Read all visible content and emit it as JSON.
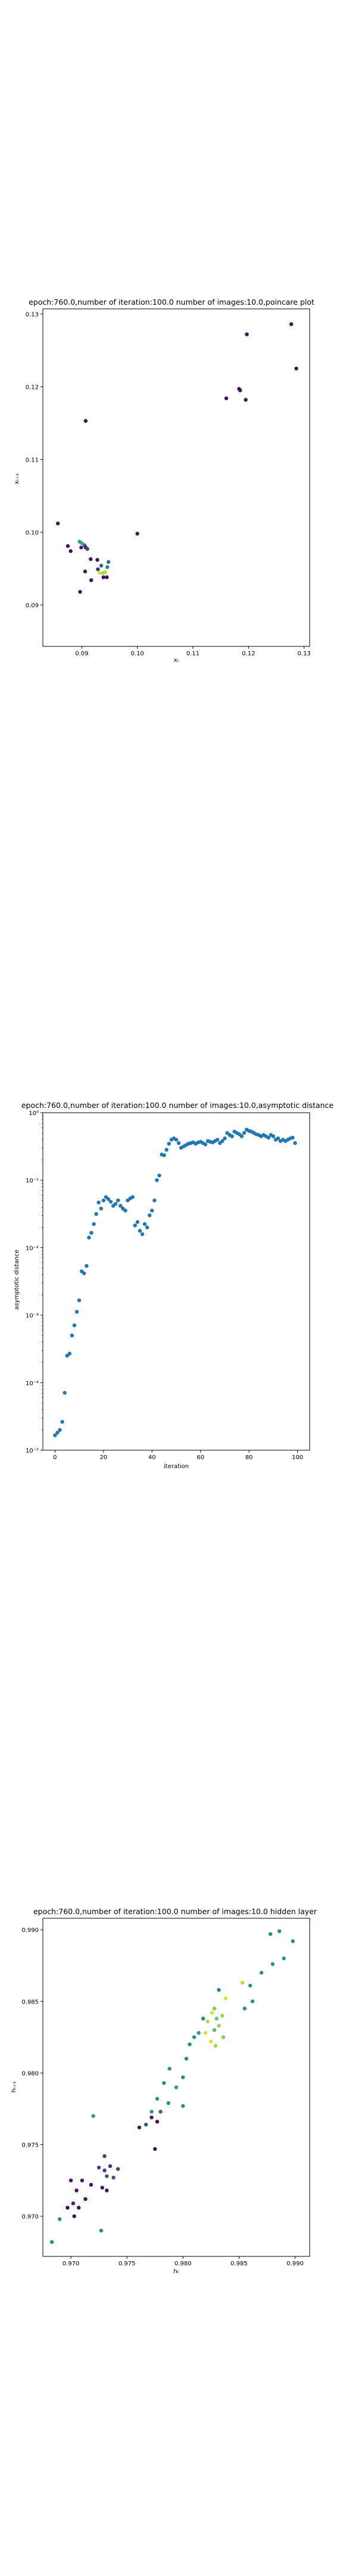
{
  "chart_data": [
    {
      "type": "scatter",
      "title": "epoch:760.0,number of iteration:100.0  number of images:10.0,poincare plot",
      "xlabel": "xₜ",
      "ylabel": "xₜ₊₁",
      "xlim": [
        0.083,
        0.131
      ],
      "ylim": [
        0.0843,
        0.1307
      ],
      "xticks": [
        0.09,
        0.1,
        0.11,
        0.12,
        0.13
      ],
      "xtick_labels": [
        "0.09",
        "0.10",
        "0.11",
        "0.12",
        "0.13"
      ],
      "yticks": [
        0.09,
        0.1,
        0.11,
        0.12,
        0.13
      ],
      "ytick_labels": [
        "0.09",
        "0.10",
        "0.11",
        "0.12",
        "0.13"
      ],
      "colormap": "viridis",
      "grid": false,
      "points": [
        {
          "x": 0.1277,
          "y": 0.1286,
          "c": 0.05
        },
        {
          "x": 0.1286,
          "y": 0.1225,
          "c": 0.05
        },
        {
          "x": 0.1197,
          "y": 0.1272,
          "c": 0.05
        },
        {
          "x": 0.1183,
          "y": 0.1197,
          "c": 0.05
        },
        {
          "x": 0.1185,
          "y": 0.1195,
          "c": 0.05
        },
        {
          "x": 0.116,
          "y": 0.1184,
          "c": 0.05
        },
        {
          "x": 0.1195,
          "y": 0.1182,
          "c": 0.05
        },
        {
          "x": 0.0907,
          "y": 0.1153,
          "c": 0.05
        },
        {
          "x": 0.0857,
          "y": 0.1012,
          "c": 0.05
        },
        {
          "x": 0.1,
          "y": 0.0998,
          "c": 0.05
        },
        {
          "x": 0.0875,
          "y": 0.0981,
          "c": 0.05
        },
        {
          "x": 0.088,
          "y": 0.0974,
          "c": 0.05
        },
        {
          "x": 0.0896,
          "y": 0.0987,
          "c": 0.55
        },
        {
          "x": 0.09,
          "y": 0.0985,
          "c": 0.6
        },
        {
          "x": 0.0905,
          "y": 0.0982,
          "c": 0.35
        },
        {
          "x": 0.0899,
          "y": 0.0979,
          "c": 0.1
        },
        {
          "x": 0.0907,
          "y": 0.0979,
          "c": 0.1
        },
        {
          "x": 0.091,
          "y": 0.0977,
          "c": 0.2
        },
        {
          "x": 0.0916,
          "y": 0.0963,
          "c": 0.05
        },
        {
          "x": 0.0928,
          "y": 0.0962,
          "c": 0.05
        },
        {
          "x": 0.0935,
          "y": 0.0954,
          "c": 0.3
        },
        {
          "x": 0.0929,
          "y": 0.0949,
          "c": 0.15
        },
        {
          "x": 0.0932,
          "y": 0.0944,
          "c": 0.95
        },
        {
          "x": 0.0938,
          "y": 0.0944,
          "c": 0.85
        },
        {
          "x": 0.0942,
          "y": 0.0945,
          "c": 0.9
        },
        {
          "x": 0.0946,
          "y": 0.0952,
          "c": 0.45
        },
        {
          "x": 0.0948,
          "y": 0.0959,
          "c": 0.35
        },
        {
          "x": 0.0939,
          "y": 0.0938,
          "c": 0.05
        },
        {
          "x": 0.0945,
          "y": 0.0938,
          "c": 0.05
        },
        {
          "x": 0.0906,
          "y": 0.0946,
          "c": 0.05
        },
        {
          "x": 0.0917,
          "y": 0.0934,
          "c": 0.05
        },
        {
          "x": 0.0897,
          "y": 0.0918,
          "c": 0.05
        }
      ]
    },
    {
      "type": "scatter",
      "title": "epoch:760.0,number of iteration:100.0  number of images:10.0,asymptotic distance",
      "xlabel": "iteration",
      "ylabel": "asymptotic distance",
      "xlim": [
        -5,
        105
      ],
      "ylim_log10": [
        -5,
        0
      ],
      "scale_y": "log",
      "xticks": [
        0,
        20,
        40,
        60,
        80,
        100
      ],
      "xtick_labels": [
        "0",
        "20",
        "40",
        "60",
        "80",
        "100"
      ],
      "ytick_labels": [
        "10⁻⁵",
        "10⁻⁴",
        "10⁻³",
        "10⁻²",
        "10⁻¹",
        "10⁰"
      ],
      "grid": false,
      "color": "#1f77b4",
      "x": [
        0,
        1,
        2,
        3,
        4,
        5,
        6,
        7,
        8,
        9,
        10,
        11,
        12,
        13,
        14,
        15,
        16,
        17,
        18,
        19,
        20,
        21,
        22,
        23,
        24,
        25,
        26,
        27,
        28,
        29,
        30,
        31,
        32,
        33,
        34,
        35,
        36,
        37,
        38,
        39,
        40,
        41,
        42,
        43,
        44,
        45,
        46,
        47,
        48,
        49,
        50,
        51,
        52,
        53,
        54,
        55,
        56,
        57,
        58,
        59,
        60,
        61,
        62,
        63,
        64,
        65,
        66,
        67,
        68,
        69,
        70,
        71,
        72,
        73,
        74,
        75,
        76,
        77,
        78,
        79,
        80,
        81,
        82,
        83,
        84,
        85,
        86,
        87,
        88,
        89,
        90,
        91,
        92,
        93,
        94,
        95,
        96,
        97,
        98,
        99
      ],
      "log10_y": [
        -4.78,
        -4.74,
        -4.7,
        -4.58,
        -4.15,
        -3.6,
        -3.57,
        -3.3,
        -3.15,
        -2.95,
        -2.78,
        -2.35,
        -2.38,
        -2.27,
        -1.85,
        -1.78,
        -1.65,
        -1.5,
        -1.33,
        -1.42,
        -1.3,
        -1.25,
        -1.28,
        -1.32,
        -1.38,
        -1.35,
        -1.3,
        -1.38,
        -1.42,
        -1.45,
        -1.3,
        -1.27,
        -1.25,
        -1.67,
        -1.62,
        -1.75,
        -1.8,
        -1.65,
        -1.7,
        -1.52,
        -1.45,
        -1.3,
        -1.0,
        -0.93,
        -0.62,
        -0.63,
        -0.55,
        -0.46,
        -0.4,
        -0.38,
        -0.4,
        -0.45,
        -0.52,
        -0.5,
        -0.48,
        -0.46,
        -0.45,
        -0.44,
        -0.46,
        -0.44,
        -0.43,
        -0.45,
        -0.47,
        -0.42,
        -0.43,
        -0.44,
        -0.42,
        -0.4,
        -0.45,
        -0.42,
        -0.38,
        -0.3,
        -0.33,
        -0.35,
        -0.28,
        -0.3,
        -0.32,
        -0.35,
        -0.3,
        -0.25,
        -0.27,
        -0.28,
        -0.3,
        -0.32,
        -0.33,
        -0.35,
        -0.33,
        -0.35,
        -0.37,
        -0.33,
        -0.35,
        -0.4,
        -0.38,
        -0.42,
        -0.4,
        -0.42,
        -0.4,
        -0.38,
        -0.37,
        -0.45
      ]
    },
    {
      "type": "scatter",
      "title": "epoch:760.0,number of iteration:100.0  number of images:10.0 hidden layer",
      "xlabel": "hₜ",
      "ylabel": "hₜ₊₁",
      "xlim": [
        0.9675,
        0.9913
      ],
      "ylim": [
        0.9672,
        0.9908
      ],
      "xticks": [
        0.97,
        0.975,
        0.98,
        0.985,
        0.99
      ],
      "xtick_labels": [
        "0.970",
        "0.975",
        "0.980",
        "0.985",
        "0.990"
      ],
      "yticks": [
        0.97,
        0.975,
        0.98,
        0.985,
        0.99
      ],
      "ytick_labels": [
        "0.970",
        "0.975",
        "0.980",
        "0.985",
        "0.990"
      ],
      "colormap": "viridis",
      "grid": false,
      "points": [
        {
          "x": 0.9878,
          "y": 0.9897,
          "c": 0.5
        },
        {
          "x": 0.9886,
          "y": 0.9899,
          "c": 0.5
        },
        {
          "x": 0.9898,
          "y": 0.9892,
          "c": 0.5
        },
        {
          "x": 0.989,
          "y": 0.988,
          "c": 0.5
        },
        {
          "x": 0.988,
          "y": 0.9876,
          "c": 0.5
        },
        {
          "x": 0.987,
          "y": 0.987,
          "c": 0.5
        },
        {
          "x": 0.986,
          "y": 0.9861,
          "c": 0.5
        },
        {
          "x": 0.9853,
          "y": 0.9863,
          "c": 0.9
        },
        {
          "x": 0.9862,
          "y": 0.985,
          "c": 0.5
        },
        {
          "x": 0.9855,
          "y": 0.9845,
          "c": 0.5
        },
        {
          "x": 0.9832,
          "y": 0.9858,
          "c": 0.45
        },
        {
          "x": 0.9838,
          "y": 0.9852,
          "c": 0.95
        },
        {
          "x": 0.9828,
          "y": 0.9845,
          "c": 0.8
        },
        {
          "x": 0.9835,
          "y": 0.984,
          "c": 0.85
        },
        {
          "x": 0.983,
          "y": 0.9838,
          "c": 0.75
        },
        {
          "x": 0.9826,
          "y": 0.9842,
          "c": 0.95
        },
        {
          "x": 0.9822,
          "y": 0.9836,
          "c": 0.9
        },
        {
          "x": 0.9832,
          "y": 0.9833,
          "c": 0.85
        },
        {
          "x": 0.9828,
          "y": 0.983,
          "c": 0.7
        },
        {
          "x": 0.982,
          "y": 0.9828,
          "c": 0.95
        },
        {
          "x": 0.9836,
          "y": 0.9825,
          "c": 0.8
        },
        {
          "x": 0.9825,
          "y": 0.9822,
          "c": 0.95
        },
        {
          "x": 0.9818,
          "y": 0.9838,
          "c": 0.5
        },
        {
          "x": 0.9814,
          "y": 0.9828,
          "c": 0.55
        },
        {
          "x": 0.981,
          "y": 0.9825,
          "c": 0.5
        },
        {
          "x": 0.9829,
          "y": 0.9819,
          "c": 0.85
        },
        {
          "x": 0.9803,
          "y": 0.981,
          "c": 0.5
        },
        {
          "x": 0.98,
          "y": 0.9797,
          "c": 0.5
        },
        {
          "x": 0.9806,
          "y": 0.982,
          "c": 0.5
        },
        {
          "x": 0.9788,
          "y": 0.9803,
          "c": 0.55
        },
        {
          "x": 0.9783,
          "y": 0.9793,
          "c": 0.5
        },
        {
          "x": 0.9794,
          "y": 0.979,
          "c": 0.55
        },
        {
          "x": 0.9777,
          "y": 0.9782,
          "c": 0.5
        },
        {
          "x": 0.9772,
          "y": 0.9773,
          "c": 0.55
        },
        {
          "x": 0.9787,
          "y": 0.9779,
          "c": 0.5
        },
        {
          "x": 0.98,
          "y": 0.9777,
          "c": 0.5
        },
        {
          "x": 0.978,
          "y": 0.9773,
          "c": 0.35
        },
        {
          "x": 0.9772,
          "y": 0.9769,
          "c": 0.1
        },
        {
          "x": 0.9777,
          "y": 0.9766,
          "c": 0.05
        },
        {
          "x": 0.9767,
          "y": 0.9764,
          "c": 0.25
        },
        {
          "x": 0.9761,
          "y": 0.9762,
          "c": 0.05
        },
        {
          "x": 0.9775,
          "y": 0.9747,
          "c": 0.05
        },
        {
          "x": 0.9742,
          "y": 0.9733,
          "c": 0.2
        },
        {
          "x": 0.9735,
          "y": 0.9735,
          "c": 0.15
        },
        {
          "x": 0.973,
          "y": 0.9732,
          "c": 0.2
        },
        {
          "x": 0.9725,
          "y": 0.9734,
          "c": 0.2
        },
        {
          "x": 0.9732,
          "y": 0.9728,
          "c": 0.25
        },
        {
          "x": 0.9738,
          "y": 0.9727,
          "c": 0.25
        },
        {
          "x": 0.973,
          "y": 0.9742,
          "c": 0.2
        },
        {
          "x": 0.972,
          "y": 0.977,
          "c": 0.55
        },
        {
          "x": 0.9728,
          "y": 0.972,
          "c": 0.05
        },
        {
          "x": 0.9718,
          "y": 0.9722,
          "c": 0.05
        },
        {
          "x": 0.9732,
          "y": 0.9718,
          "c": 0.05
        },
        {
          "x": 0.971,
          "y": 0.9725,
          "c": 0.05
        },
        {
          "x": 0.97,
          "y": 0.9725,
          "c": 0.05
        },
        {
          "x": 0.9705,
          "y": 0.9718,
          "c": 0.05
        },
        {
          "x": 0.9713,
          "y": 0.9712,
          "c": 0.05
        },
        {
          "x": 0.9702,
          "y": 0.9709,
          "c": 0.1
        },
        {
          "x": 0.9707,
          "y": 0.9706,
          "c": 0.05
        },
        {
          "x": 0.9697,
          "y": 0.9706,
          "c": 0.05
        },
        {
          "x": 0.9703,
          "y": 0.97,
          "c": 0.05
        },
        {
          "x": 0.969,
          "y": 0.9698,
          "c": 0.5
        },
        {
          "x": 0.9727,
          "y": 0.969,
          "c": 0.5
        },
        {
          "x": 0.9683,
          "y": 0.9682,
          "c": 0.5
        }
      ]
    }
  ]
}
